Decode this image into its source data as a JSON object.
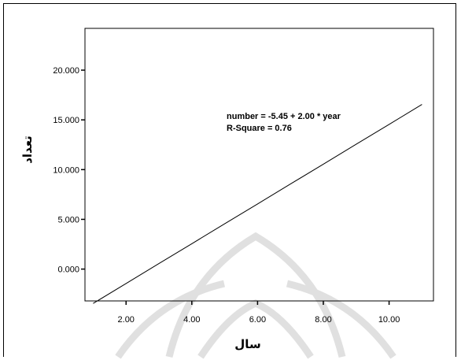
{
  "chart_data": {
    "type": "line",
    "title": "",
    "xlabel": "سال",
    "ylabel": "تعداد",
    "xlim": [
      0.75,
      11.35
    ],
    "ylim": [
      -3.2,
      24.2
    ],
    "x_ticks": [
      2,
      4,
      6,
      8,
      10
    ],
    "x_tick_labels": [
      "2.00",
      "4.00",
      "6.00",
      "8.00",
      "10.00"
    ],
    "y_ticks": [
      0,
      5,
      10,
      15,
      20
    ],
    "y_tick_labels": [
      "0.000",
      "5.000",
      "10.000",
      "15.000",
      "20.000"
    ],
    "grid": false,
    "series": [
      {
        "x": [
          1,
          2,
          3,
          4,
          5,
          6,
          7,
          8,
          9,
          10,
          11
        ],
        "y": [
          -3.45,
          -1.45,
          0.55,
          2.55,
          4.55,
          6.55,
          8.55,
          10.55,
          12.55,
          14.55,
          16.55
        ]
      }
    ],
    "annotations": [
      "number = -5.45 + 2.00 * year",
      "R-Square = 0.76"
    ],
    "colors": {
      "line": "#000000",
      "frame": "#000000",
      "watermark": "#c8c8c8"
    }
  }
}
